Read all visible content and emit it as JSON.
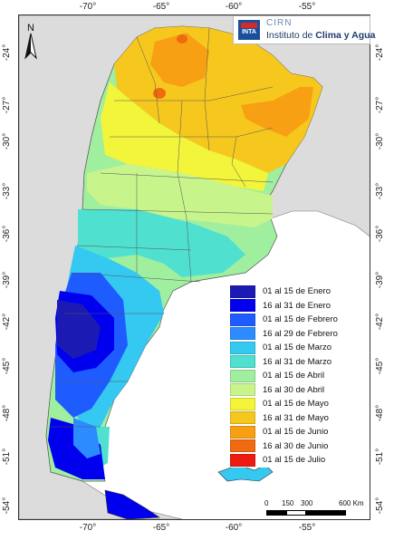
{
  "logo": {
    "inta": "INTA",
    "cirn": "CIRN",
    "institute_prefix": "Instituto de ",
    "institute_bold": "Clima y Agua"
  },
  "north_label": "N",
  "axes": {
    "top": [
      "-70°",
      "-65°",
      "-60°",
      "-55°"
    ],
    "bottom": [
      "-70°",
      "-65°",
      "-60°",
      "-55°"
    ],
    "left": [
      "-24°",
      "-27°",
      "-30°",
      "-33°",
      "-36°",
      "-39°",
      "-42°",
      "-45°",
      "-48°",
      "-51°",
      "-54°"
    ],
    "right": [
      "-24°",
      "-27°",
      "-30°",
      "-33°",
      "-36°",
      "-39°",
      "-42°",
      "-45°",
      "-48°",
      "-51°",
      "-54°"
    ]
  },
  "legend": [
    {
      "label": "01 al 15 de Enero",
      "color": "#1b1bb4"
    },
    {
      "label": "16 al 31 de Enero",
      "color": "#0000ee"
    },
    {
      "label": "01 al 15 de Febrero",
      "color": "#1f5cff"
    },
    {
      "label": "16 al 29 de Febrero",
      "color": "#2c8cff"
    },
    {
      "label": "01 al 15 de Marzo",
      "color": "#35c8f0"
    },
    {
      "label": "16 al 31 de Marzo",
      "color": "#4fe0d0"
    },
    {
      "label": "01 al 15 de Abril",
      "color": "#9fef9f"
    },
    {
      "label": "16 al 30 de Abril",
      "color": "#c8f48c"
    },
    {
      "label": "01 al 15 de Mayo",
      "color": "#f2f53a"
    },
    {
      "label": "16 al 31 de Mayo",
      "color": "#f6c81e"
    },
    {
      "label": "01 al 15 de Junio",
      "color": "#f7a013"
    },
    {
      "label": "16 al 30 de Junio",
      "color": "#f06a10"
    },
    {
      "label": "01 al 15 de Julio",
      "color": "#ee1b12"
    }
  ],
  "scale_bar": {
    "labels": [
      "0",
      "150",
      "300",
      "600 Km"
    ]
  }
}
